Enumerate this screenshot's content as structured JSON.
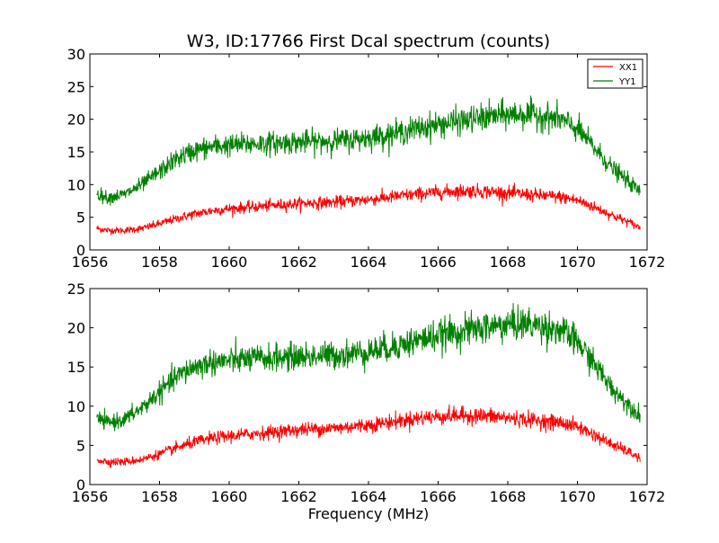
{
  "chart_data": [
    {
      "type": "line",
      "title": "W3, ID:17766 First Dcal spectrum (counts)",
      "xlabel": "",
      "ylabel": "",
      "xlim": [
        1656,
        1672
      ],
      "ylim": [
        0,
        30
      ],
      "xticks": [
        "1656",
        "1658",
        "1660",
        "1662",
        "1664",
        "1666",
        "1668",
        "1670",
        "1672"
      ],
      "yticks": [
        "0",
        "5",
        "10",
        "15",
        "20",
        "25",
        "30"
      ],
      "legend": {
        "placement": "top-right",
        "entries": [
          "XX1",
          "YY1"
        ]
      },
      "grid": false,
      "series": [
        {
          "name": "XX1",
          "color": "#ff0000",
          "x": [
            1656.2,
            1656.5,
            1657.0,
            1657.5,
            1658.0,
            1658.5,
            1659.0,
            1659.5,
            1660.0,
            1660.5,
            1661.0,
            1661.5,
            1662.0,
            1662.5,
            1663.0,
            1663.5,
            1664.0,
            1664.5,
            1665.0,
            1665.5,
            1666.0,
            1666.5,
            1667.0,
            1667.5,
            1668.0,
            1668.5,
            1669.0,
            1669.5,
            1670.0,
            1670.5,
            1671.0,
            1671.5,
            1671.8
          ],
          "y": [
            3.3,
            3.0,
            3.0,
            3.3,
            4.0,
            4.8,
            5.5,
            6.0,
            6.3,
            6.5,
            6.7,
            6.9,
            7.1,
            7.2,
            7.3,
            7.5,
            7.7,
            8.0,
            8.3,
            8.6,
            8.8,
            9.0,
            9.0,
            8.9,
            8.7,
            8.5,
            8.3,
            8.1,
            7.6,
            6.5,
            5.3,
            4.2,
            3.4
          ]
        },
        {
          "name": "YY1",
          "color": "#008000",
          "x": [
            1656.2,
            1656.5,
            1657.0,
            1657.5,
            1658.0,
            1658.5,
            1659.0,
            1659.5,
            1660.0,
            1660.5,
            1661.0,
            1661.5,
            1662.0,
            1662.5,
            1663.0,
            1663.5,
            1664.0,
            1664.5,
            1665.0,
            1665.5,
            1666.0,
            1666.5,
            1667.0,
            1667.5,
            1668.0,
            1668.5,
            1669.0,
            1669.5,
            1670.0,
            1670.5,
            1671.0,
            1671.5,
            1671.8
          ],
          "y": [
            8.6,
            8.0,
            8.5,
            10.0,
            12.0,
            14.0,
            15.2,
            15.8,
            16.0,
            16.2,
            16.3,
            16.4,
            16.5,
            16.6,
            16.7,
            16.9,
            17.2,
            17.6,
            18.1,
            18.7,
            19.2,
            19.6,
            20.0,
            20.4,
            20.7,
            20.8,
            20.5,
            20.0,
            18.5,
            15.5,
            12.5,
            10.3,
            8.9
          ]
        }
      ]
    },
    {
      "type": "line",
      "title": "",
      "xlabel": "Frequency (MHz)",
      "ylabel": "",
      "xlim": [
        1656,
        1672
      ],
      "ylim": [
        0,
        25
      ],
      "xticks": [
        "1656",
        "1658",
        "1660",
        "1662",
        "1664",
        "1666",
        "1668",
        "1670",
        "1672"
      ],
      "yticks": [
        "0",
        "5",
        "10",
        "15",
        "20",
        "25"
      ],
      "grid": false,
      "series": [
        {
          "color": "#ff0000",
          "x": [
            1656.2,
            1656.5,
            1657.0,
            1657.5,
            1658.0,
            1658.5,
            1659.0,
            1659.5,
            1660.0,
            1660.5,
            1661.0,
            1661.5,
            1662.0,
            1662.5,
            1663.0,
            1663.5,
            1664.0,
            1664.5,
            1665.0,
            1665.5,
            1666.0,
            1666.5,
            1667.0,
            1667.5,
            1668.0,
            1668.5,
            1669.0,
            1669.5,
            1670.0,
            1670.5,
            1671.0,
            1671.5,
            1671.8
          ],
          "y": [
            3.2,
            2.9,
            2.9,
            3.2,
            3.9,
            4.7,
            5.4,
            5.9,
            6.2,
            6.4,
            6.6,
            6.8,
            7.0,
            7.1,
            7.2,
            7.4,
            7.6,
            7.9,
            8.2,
            8.5,
            8.7,
            8.8,
            8.8,
            8.7,
            8.5,
            8.3,
            8.1,
            7.9,
            7.4,
            6.3,
            5.1,
            4.1,
            3.3
          ]
        },
        {
          "color": "#008000",
          "x": [
            1656.2,
            1656.5,
            1657.0,
            1657.5,
            1658.0,
            1658.5,
            1659.0,
            1659.5,
            1660.0,
            1660.5,
            1661.0,
            1661.5,
            1662.0,
            1662.5,
            1663.0,
            1663.5,
            1664.0,
            1664.5,
            1665.0,
            1665.5,
            1666.0,
            1666.5,
            1667.0,
            1667.5,
            1668.0,
            1668.5,
            1669.0,
            1669.5,
            1670.0,
            1670.5,
            1671.0,
            1671.5,
            1671.8
          ],
          "y": [
            8.4,
            7.9,
            8.3,
            9.8,
            11.8,
            13.8,
            15.0,
            15.6,
            15.8,
            16.0,
            16.1,
            16.2,
            16.3,
            16.4,
            16.5,
            16.7,
            17.0,
            17.4,
            17.9,
            18.5,
            19.0,
            19.4,
            19.8,
            20.1,
            20.4,
            20.5,
            20.2,
            19.7,
            18.2,
            15.3,
            12.2,
            10.1,
            8.8
          ]
        }
      ]
    }
  ]
}
